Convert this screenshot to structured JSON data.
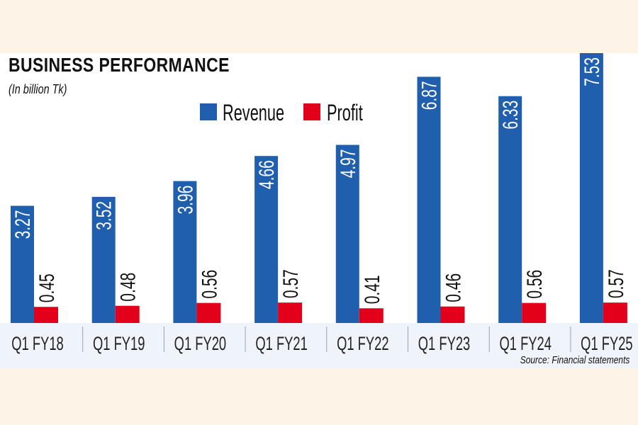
{
  "chart_data": {
    "type": "bar",
    "title": "BUSINESS PERFORMANCE",
    "subtitle": "(In billion Tk)",
    "source": "Source: Financial statements",
    "categories": [
      "Q1 FY18",
      "Q1 FY19",
      "Q1 FY20",
      "Q1 FY21",
      "Q1 FY22",
      "Q1 FY23",
      "Q1 FY24",
      "Q1 FY25"
    ],
    "series": [
      {
        "name": "Revenue",
        "color": "#1f5fad",
        "values": [
          3.27,
          3.52,
          3.96,
          4.66,
          4.97,
          6.87,
          6.33,
          7.53
        ]
      },
      {
        "name": "Profit",
        "color": "#e2001a",
        "values": [
          0.45,
          0.48,
          0.56,
          0.57,
          0.41,
          0.46,
          0.56,
          0.57
        ]
      }
    ],
    "legend": "top-center",
    "grid": false,
    "ylim": [
      0,
      7.53
    ]
  }
}
